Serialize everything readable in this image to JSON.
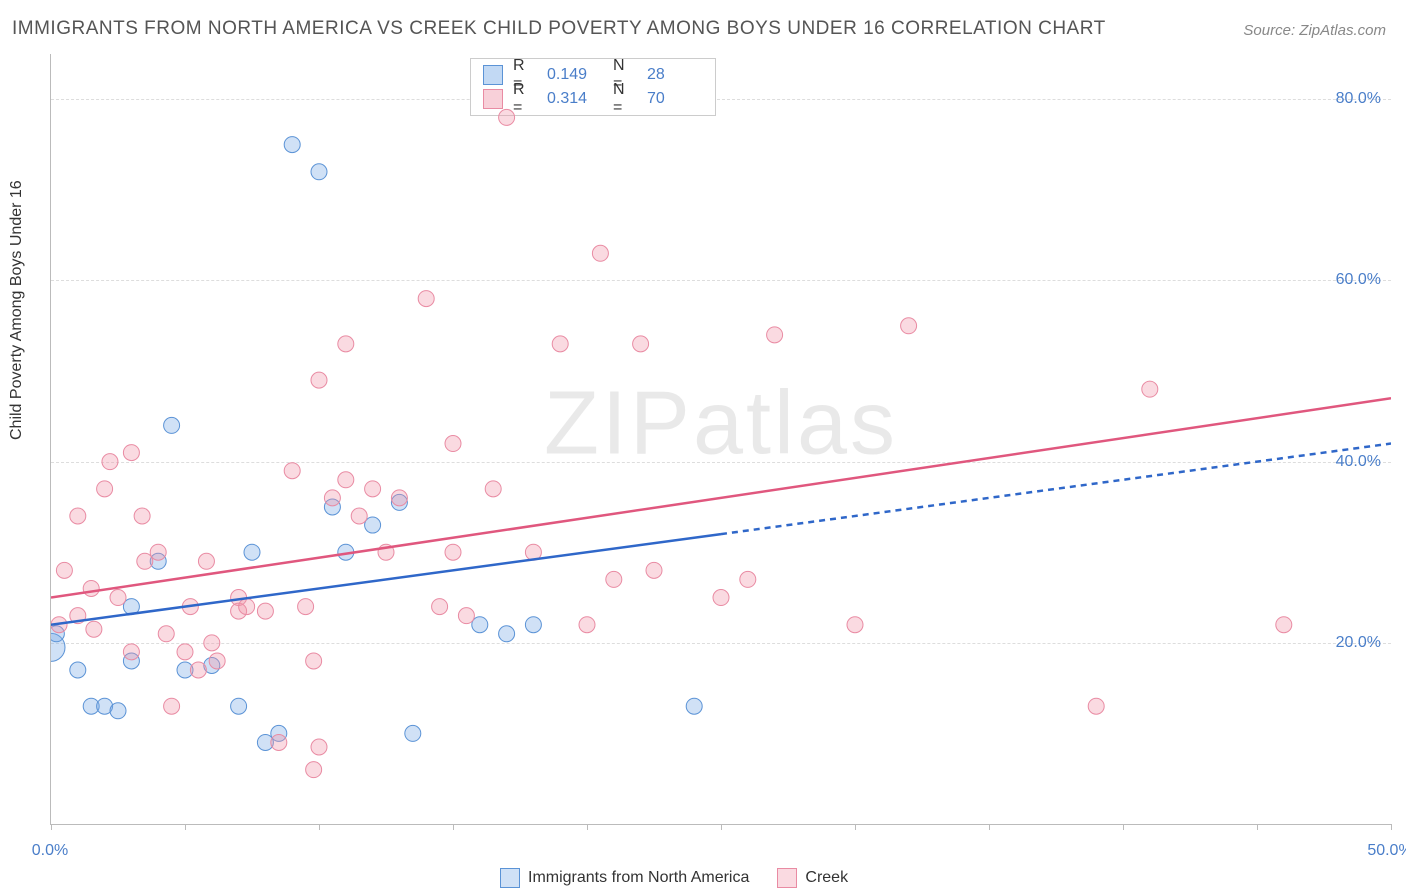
{
  "title": "IMMIGRANTS FROM NORTH AMERICA VS CREEK CHILD POVERTY AMONG BOYS UNDER 16 CORRELATION CHART",
  "source_prefix": "Source: ",
  "source_name": "ZipAtlas.com",
  "ylabel": "Child Poverty Among Boys Under 16",
  "watermark": "ZIPatlas",
  "chart": {
    "type": "scatter",
    "xlim": [
      0,
      50
    ],
    "ylim": [
      0,
      85
    ],
    "x_ticks": [
      0,
      5,
      10,
      15,
      20,
      25,
      30,
      35,
      40,
      45,
      50
    ],
    "x_tick_labels": {
      "0": "0.0%",
      "50": "50.0%"
    },
    "y_ticks": [
      20,
      40,
      60,
      80
    ],
    "y_tick_labels": [
      "20.0%",
      "40.0%",
      "60.0%",
      "80.0%"
    ],
    "grid_color": "#dddddd",
    "axis_color": "#bbbbbb",
    "tick_label_color": "#4a7ec9",
    "series": [
      {
        "key": "blue",
        "label": "Immigrants from North America",
        "color_fill": "rgba(120,170,230,0.35)",
        "color_stroke": "#5b93d6",
        "r_value": "0.149",
        "n_value": "28",
        "marker_r": 8,
        "trend": {
          "x1": 0,
          "y1": 22,
          "x2_solid": 25,
          "y2_solid": 32,
          "x2_dash": 50,
          "y2_dash": 42,
          "color": "#2f67c9",
          "width": 2.5
        },
        "points": [
          [
            0,
            19.5,
            14
          ],
          [
            0.2,
            21,
            8
          ],
          [
            1,
            17
          ],
          [
            1.5,
            13
          ],
          [
            2,
            13
          ],
          [
            2.5,
            12.5
          ],
          [
            3,
            18
          ],
          [
            3,
            24
          ],
          [
            4,
            29
          ],
          [
            4.5,
            44
          ],
          [
            5,
            17
          ],
          [
            6,
            17.5
          ],
          [
            7,
            13
          ],
          [
            7.5,
            30
          ],
          [
            8,
            9
          ],
          [
            8.5,
            10
          ],
          [
            9,
            75
          ],
          [
            10,
            72
          ],
          [
            10.5,
            35
          ],
          [
            11,
            30
          ],
          [
            12,
            33
          ],
          [
            13,
            35.5
          ],
          [
            13.5,
            10
          ],
          [
            16,
            22
          ],
          [
            17,
            21
          ],
          [
            18,
            22
          ],
          [
            24,
            13
          ]
        ]
      },
      {
        "key": "pink",
        "label": "Creek",
        "color_fill": "rgba(240,150,170,0.35)",
        "color_stroke": "#e98ba3",
        "r_value": "0.314",
        "n_value": "70",
        "marker_r": 8,
        "trend": {
          "x1": 0,
          "y1": 25,
          "x2_solid": 50,
          "y2_solid": 47,
          "color": "#e0577e",
          "width": 2.5
        },
        "points": [
          [
            0.3,
            22
          ],
          [
            0.5,
            28
          ],
          [
            1,
            23
          ],
          [
            1,
            34
          ],
          [
            1.5,
            26
          ],
          [
            1.6,
            21.5
          ],
          [
            2,
            37
          ],
          [
            2.2,
            40
          ],
          [
            2.5,
            25
          ],
          [
            3,
            19
          ],
          [
            3,
            41
          ],
          [
            3.4,
            34
          ],
          [
            3.5,
            29
          ],
          [
            4,
            30
          ],
          [
            4.3,
            21
          ],
          [
            4.5,
            13
          ],
          [
            5,
            19
          ],
          [
            5.2,
            24
          ],
          [
            5.5,
            17
          ],
          [
            5.8,
            29
          ],
          [
            6,
            20
          ],
          [
            6.2,
            18
          ],
          [
            7,
            23.5
          ],
          [
            7,
            25
          ],
          [
            7.3,
            24
          ],
          [
            8,
            23.5
          ],
          [
            8.5,
            9
          ],
          [
            9,
            39
          ],
          [
            9.5,
            24
          ],
          [
            9.8,
            18
          ],
          [
            9.8,
            6
          ],
          [
            10,
            49
          ],
          [
            10,
            8.5
          ],
          [
            10.5,
            36
          ],
          [
            11,
            53
          ],
          [
            11,
            38
          ],
          [
            11.5,
            34
          ],
          [
            12,
            37
          ],
          [
            12.5,
            30
          ],
          [
            13,
            36
          ],
          [
            14,
            58
          ],
          [
            14.5,
            24
          ],
          [
            15,
            42
          ],
          [
            15,
            30
          ],
          [
            15.5,
            23
          ],
          [
            16.5,
            37
          ],
          [
            17,
            78
          ],
          [
            18,
            30
          ],
          [
            19,
            53
          ],
          [
            20,
            22
          ],
          [
            20.5,
            63
          ],
          [
            21,
            27
          ],
          [
            22,
            53
          ],
          [
            22.5,
            28
          ],
          [
            25,
            25
          ],
          [
            26,
            27
          ],
          [
            27,
            54
          ],
          [
            30,
            22
          ],
          [
            32,
            55
          ],
          [
            39,
            13
          ],
          [
            41,
            48
          ],
          [
            46,
            22
          ]
        ]
      }
    ]
  },
  "legend_top": {
    "rows": [
      {
        "swatch_fill": "rgba(120,170,230,0.45)",
        "swatch_border": "#5b93d6",
        "r_label": "R =",
        "r": "0.149",
        "n_label": "N =",
        "n": "28"
      },
      {
        "swatch_fill": "rgba(240,150,170,0.45)",
        "swatch_border": "#e98ba3",
        "r_label": "R =",
        "r": "0.314",
        "n_label": "N =",
        "n": "70"
      }
    ]
  }
}
